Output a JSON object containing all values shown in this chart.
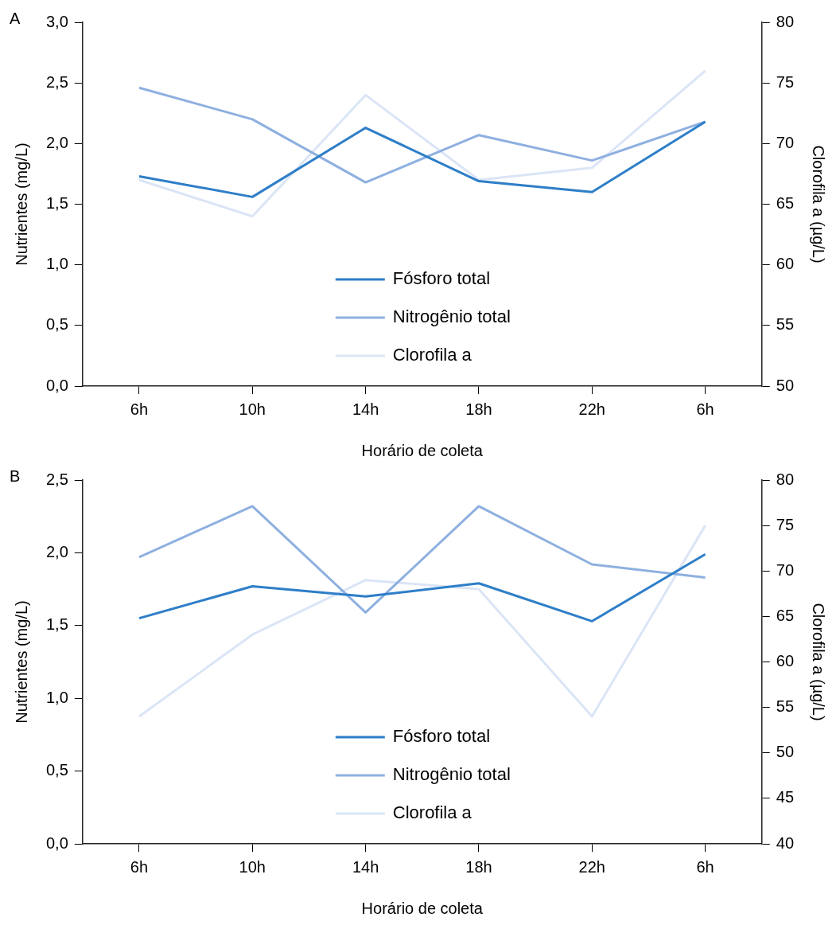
{
  "chart_data": [
    {
      "type": "line",
      "annotations": [
        "A"
      ],
      "xlabel": "Horário de coleta",
      "ylabel": "Nutrientes (mg/L)",
      "y2label": "Clorofila a (µg/L)",
      "categories": [
        "6h",
        "10h",
        "14h",
        "18h",
        "22h",
        "6h"
      ],
      "series": [
        {
          "name": "Fósforo total",
          "color": "#2e7ec8",
          "values": [
            1.73,
            1.56,
            2.13,
            1.69,
            1.6,
            2.18
          ]
        },
        {
          "name": "Nitrogênio total",
          "color": "#8eb0e0",
          "values": [
            2.46,
            2.2,
            1.68,
            2.07,
            1.86,
            2.18
          ]
        },
        {
          "name": "Clorofila a",
          "color": "#dbe5f6",
          "axis": "y2",
          "values": [
            67,
            64,
            74,
            67,
            68,
            76
          ]
        }
      ],
      "ylim": [
        0,
        3
      ],
      "yticks": [
        {
          "value": 0,
          "label": "0,0"
        },
        {
          "value": 0.5,
          "label": "0,5"
        },
        {
          "value": 1,
          "label": "1,0"
        },
        {
          "value": 1.5,
          "label": "1,5"
        },
        {
          "value": 2,
          "label": "2,0"
        },
        {
          "value": 2.5,
          "label": "2,5"
        },
        {
          "value": 3,
          "label": "3,0"
        }
      ],
      "y2lim": [
        50,
        80
      ],
      "y2ticks": [
        50,
        55,
        60,
        65,
        70,
        75,
        80
      ],
      "legend": "bottom"
    },
    {
      "type": "line",
      "annotations": [
        "B"
      ],
      "xlabel": "Horário de coleta",
      "ylabel": "Nutrientes (mg/L)",
      "y2label": "Clorofila a (µg/L)",
      "categories": [
        "6h",
        "10h",
        "14h",
        "18h",
        "22h",
        "6h"
      ],
      "series": [
        {
          "name": "Fósforo total",
          "color": "#2e7ec8",
          "values": [
            1.55,
            1.77,
            1.7,
            1.79,
            1.53,
            1.99
          ]
        },
        {
          "name": "Nitrogênio total",
          "color": "#8eb0e0",
          "values": [
            1.97,
            2.32,
            1.59,
            2.32,
            1.92,
            1.83
          ]
        },
        {
          "name": "Clorofila a",
          "color": "#dbe5f6",
          "axis": "y2",
          "values": [
            54,
            63,
            69,
            68,
            54,
            75
          ]
        }
      ],
      "ylim": [
        0,
        2.5
      ],
      "yticks": [
        {
          "value": 0,
          "label": "0,0"
        },
        {
          "value": 0.5,
          "label": "0,5"
        },
        {
          "value": 1,
          "label": "1,0"
        },
        {
          "value": 1.5,
          "label": "1,5"
        },
        {
          "value": 2,
          "label": "2,0"
        },
        {
          "value": 2.5,
          "label": "2,5"
        }
      ],
      "y2lim": [
        40,
        80
      ],
      "y2ticks": [
        40,
        45,
        50,
        55,
        60,
        65,
        70,
        75,
        80
      ],
      "legend": "bottom"
    }
  ]
}
